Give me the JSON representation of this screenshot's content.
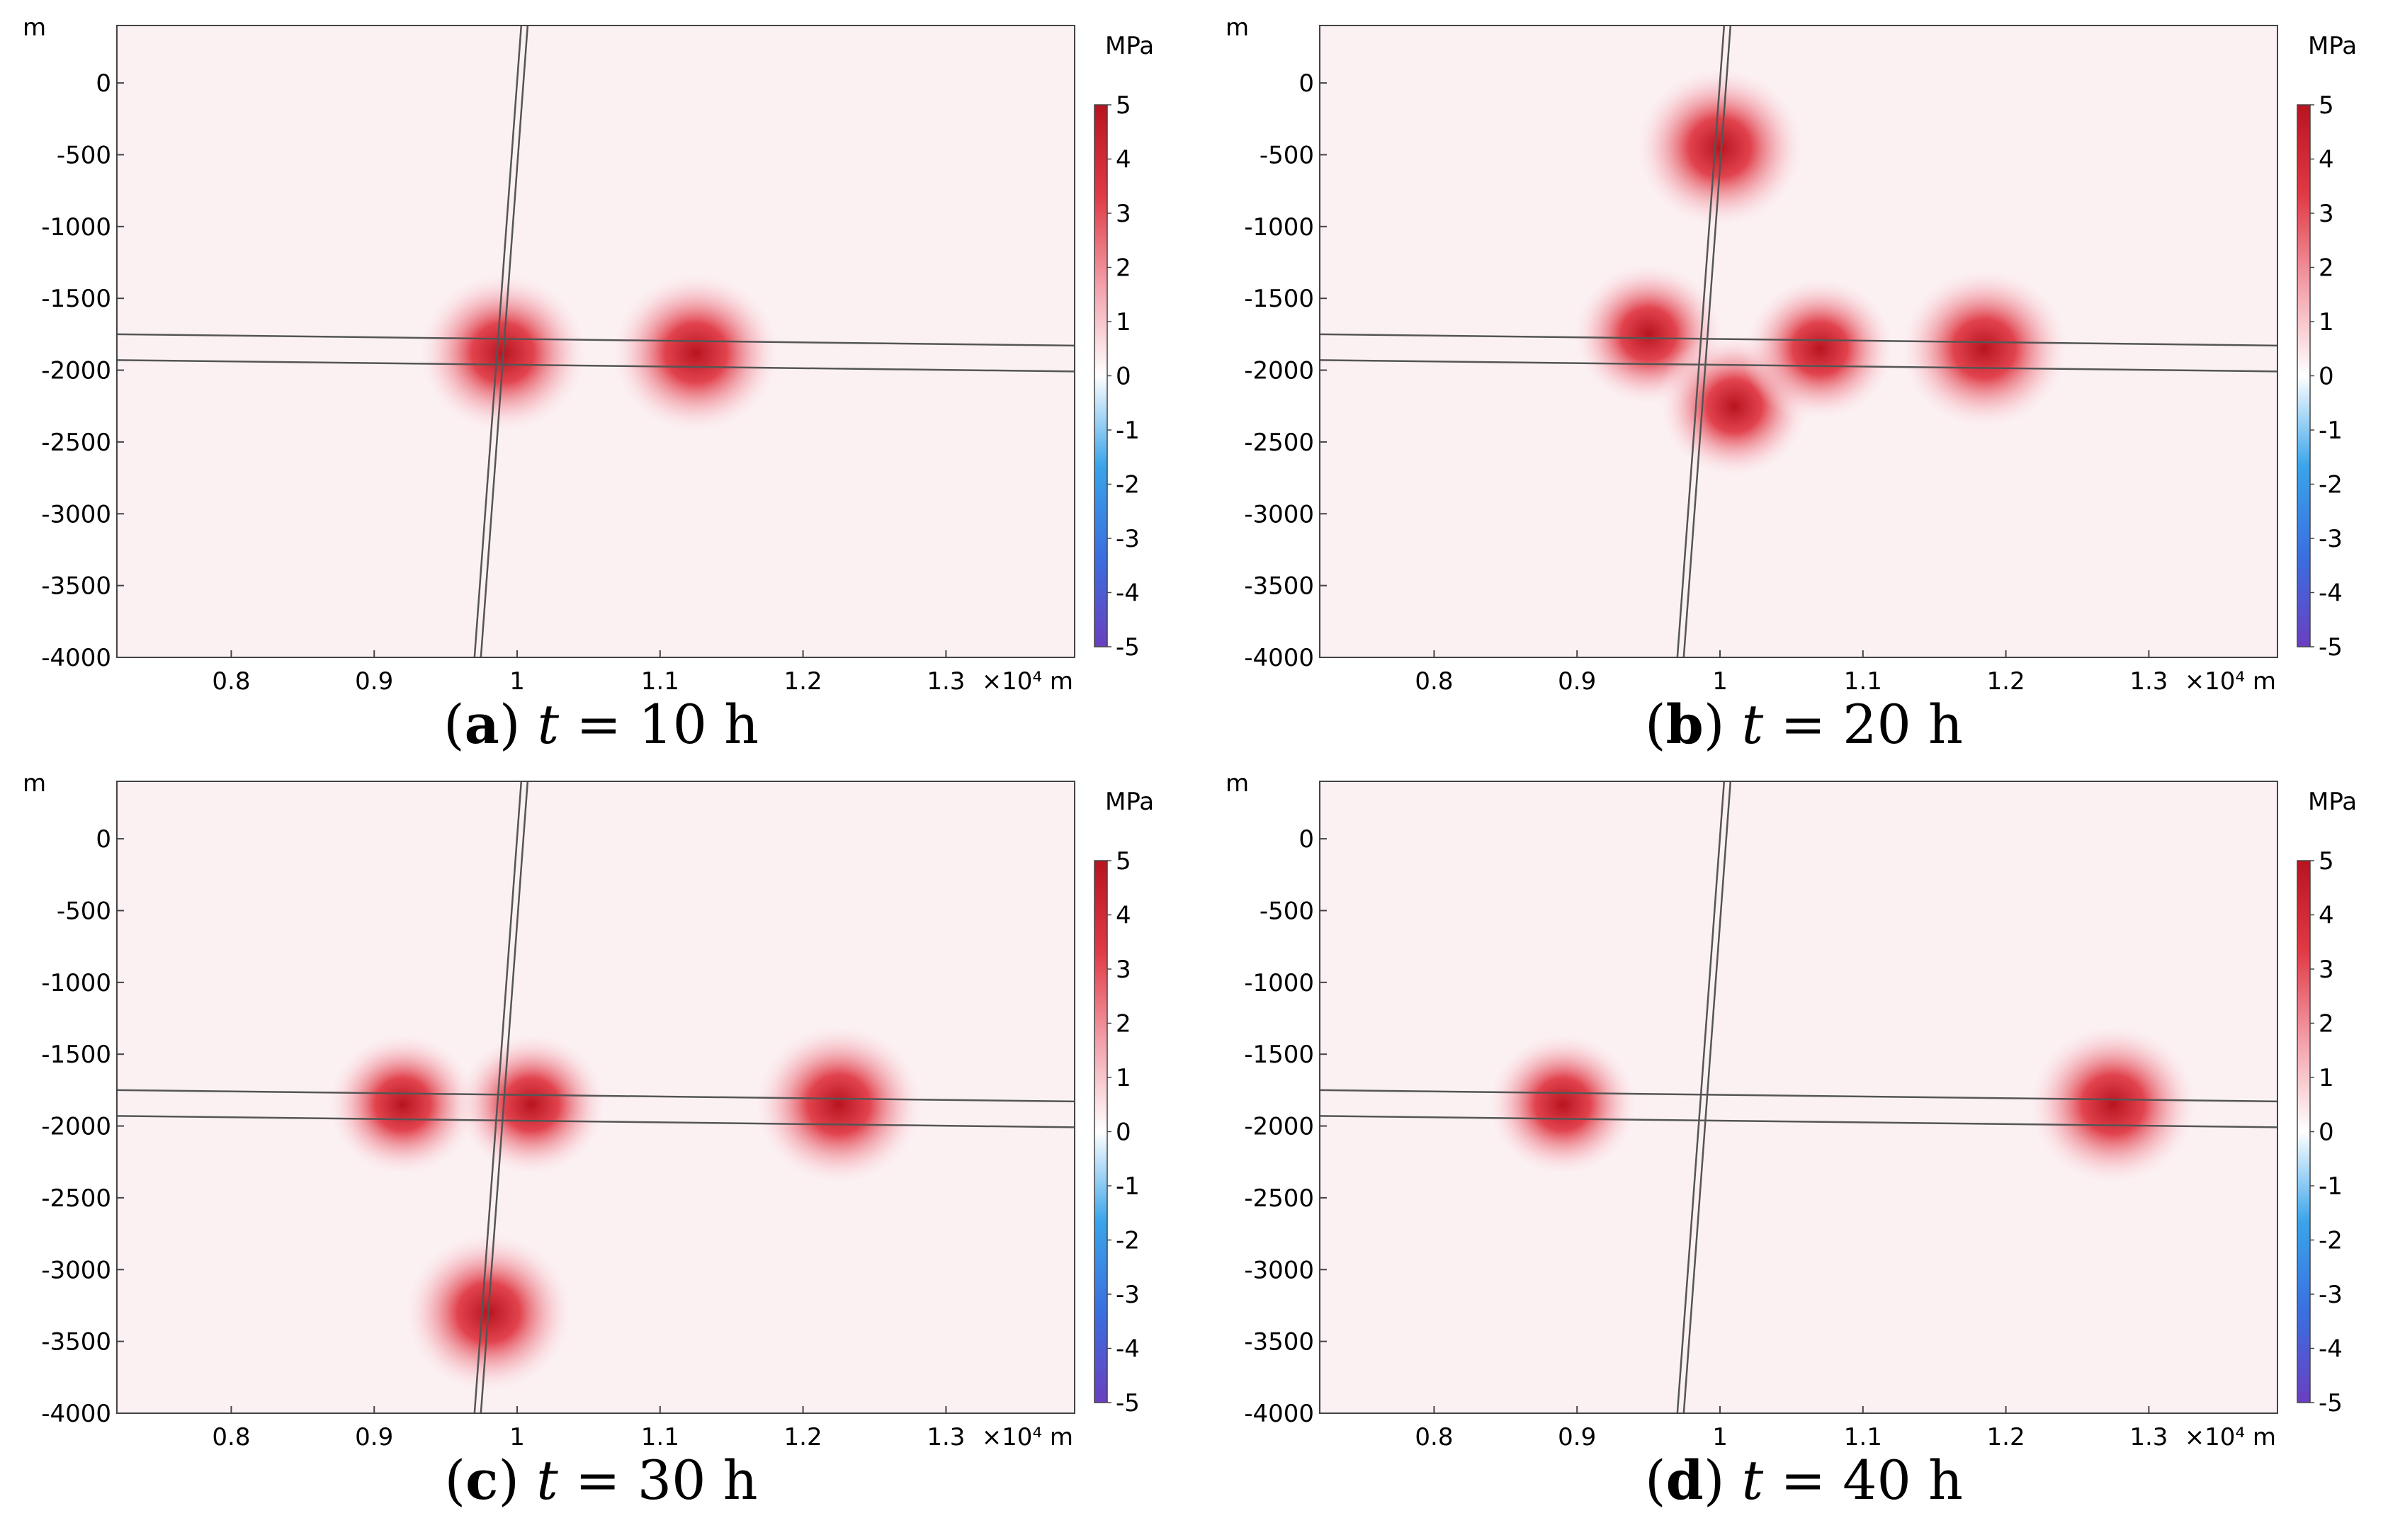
{
  "figure": {
    "colorbar": {
      "unit": "MPa",
      "ticks": [
        "5",
        "4",
        "3",
        "2",
        "1",
        "0",
        "-1",
        "-2",
        "-3",
        "-4",
        "-5"
      ],
      "range": [
        -5,
        5
      ],
      "colors": [
        "#6a3fc0",
        "#3a6fe0",
        "#3aa4ea",
        "#ffffff",
        "#f3a0aa",
        "#e03a45",
        "#b8141f"
      ]
    },
    "panels": [
      {
        "id": "a",
        "caption": {
          "label": "a",
          "var": "t",
          "rest": " = 10 h"
        },
        "chart_data": {
          "type": "heatmap",
          "title": "(a) t = 10 h",
          "ylabel": "m",
          "ylim": [
            -4000,
            400
          ],
          "yticks": [
            "0",
            "-500",
            "-1000",
            "-1500",
            "-2000",
            "-2500",
            "-3000",
            "-3500",
            "-4000"
          ],
          "xlabel": "×10⁴ m",
          "xlim": [
            0.72,
            1.39
          ],
          "xticks": [
            "0.8",
            "0.9",
            "1",
            "1.1",
            "1.2",
            "1.3"
          ],
          "colorbar_unit": "MPa",
          "colorbar_range": [
            -5,
            5
          ],
          "fracture_hot_spots": [
            {
              "x": 0.99,
              "y": -1880,
              "value": 5
            },
            {
              "x": 1.125,
              "y": -1880,
              "value": 5
            }
          ]
        }
      },
      {
        "id": "b",
        "caption": {
          "label": "b",
          "var": "t",
          "rest": " = 20 h"
        },
        "chart_data": {
          "type": "heatmap",
          "title": "(b) t = 20 h",
          "ylabel": "m",
          "ylim": [
            -4000,
            400
          ],
          "yticks": [
            "0",
            "-500",
            "-1000",
            "-1500",
            "-2000",
            "-2500",
            "-3000",
            "-3500",
            "-4000"
          ],
          "xlabel": "×10⁴ m",
          "xlim": [
            0.72,
            1.39
          ],
          "xticks": [
            "0.8",
            "0.9",
            "1",
            "1.1",
            "1.2",
            "1.3"
          ],
          "colorbar_unit": "MPa",
          "colorbar_range": [
            -5,
            5
          ],
          "fracture_hot_spots": [
            {
              "x": 1.0,
              "y": -450,
              "value": 5
            },
            {
              "x": 0.95,
              "y": -1750,
              "value": 4
            },
            {
              "x": 1.01,
              "y": -2250,
              "value": 4
            },
            {
              "x": 1.07,
              "y": -1850,
              "value": 4
            },
            {
              "x": 1.185,
              "y": -1850,
              "value": 5
            }
          ]
        }
      },
      {
        "id": "c",
        "caption": {
          "label": "c",
          "var": "t",
          "rest": " = 30 h"
        },
        "chart_data": {
          "type": "heatmap",
          "title": "(c) t = 30 h",
          "ylabel": "m",
          "ylim": [
            -4000,
            400
          ],
          "yticks": [
            "0",
            "-500",
            "-1000",
            "-1500",
            "-2000",
            "-2500",
            "-3000",
            "-3500",
            "-4000"
          ],
          "xlabel": "×10⁴ m",
          "xlim": [
            0.72,
            1.39
          ],
          "xticks": [
            "0.8",
            "0.9",
            "1",
            "1.1",
            "1.2",
            "1.3"
          ],
          "colorbar_unit": "MPa",
          "colorbar_range": [
            -5,
            5
          ],
          "fracture_hot_spots": [
            {
              "x": 0.92,
              "y": -1850,
              "value": 4
            },
            {
              "x": 1.01,
              "y": -1850,
              "value": 4
            },
            {
              "x": 1.225,
              "y": -1850,
              "value": 5
            },
            {
              "x": 0.98,
              "y": -3300,
              "value": 5
            }
          ]
        }
      },
      {
        "id": "d",
        "caption": {
          "label": "d",
          "var": "t",
          "rest": " = 40 h"
        },
        "chart_data": {
          "type": "heatmap",
          "title": "(d) t = 40 h",
          "ylabel": "m",
          "ylim": [
            -4000,
            400
          ],
          "yticks": [
            "0",
            "-500",
            "-1000",
            "-1500",
            "-2000",
            "-2500",
            "-3000",
            "-3500",
            "-4000"
          ],
          "xlabel": "×10⁴ m",
          "xlim": [
            0.72,
            1.39
          ],
          "xticks": [
            "0.8",
            "0.9",
            "1",
            "1.1",
            "1.2",
            "1.3"
          ],
          "colorbar_unit": "MPa",
          "colorbar_range": [
            -5,
            5
          ],
          "fracture_hot_spots": [
            {
              "x": 0.89,
              "y": -1850,
              "value": 4
            },
            {
              "x": 1.275,
              "y": -1850,
              "value": 5
            }
          ]
        }
      }
    ]
  }
}
